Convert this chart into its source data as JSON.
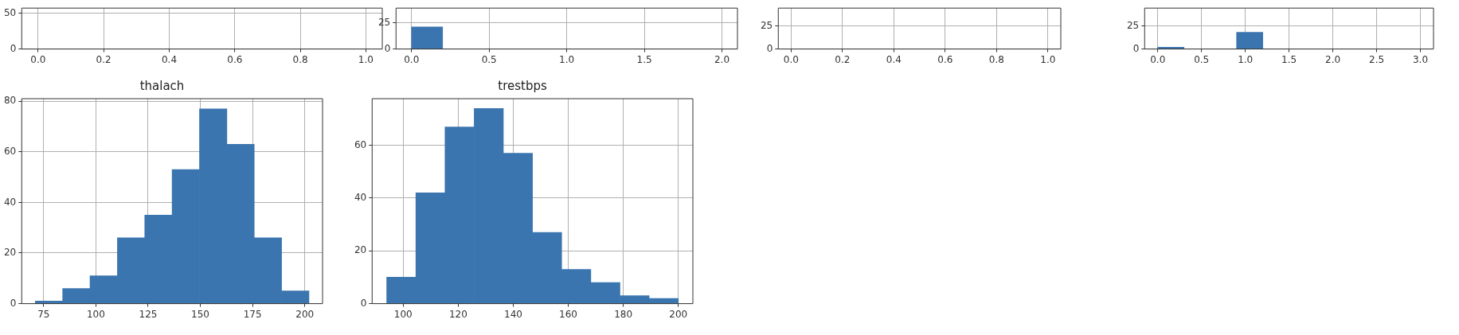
{
  "chart_data": [
    {
      "type": "histogram",
      "bins": [
        0,
        0.1,
        0.2,
        0.3,
        0.4,
        0.5,
        0.6,
        0.7,
        0.8,
        0.9,
        1.0
      ],
      "values": [
        null,
        0,
        0,
        0,
        0,
        0,
        0,
        0,
        0,
        null
      ],
      "color": "#3b75af",
      "xlim": [
        -0.05,
        1.05
      ],
      "xticks": [
        {
          "value": 0,
          "label": "0.0"
        },
        0.2,
        0.4,
        0.6,
        0.8,
        {
          "value": 1,
          "label": "1.0"
        }
      ],
      "ylim": [
        0,
        57
      ],
      "yticks": [
        0,
        50
      ],
      "grid": true
    },
    {
      "type": "histogram",
      "bins": [
        0,
        0.2,
        0.4,
        0.6,
        0.8,
        1.0,
        1.2,
        1.4,
        1.6,
        1.8,
        2.0
      ],
      "values": [
        21,
        0,
        0,
        0,
        0,
        null,
        0,
        0,
        0,
        null
      ],
      "color": "#3b75af",
      "xlim": [
        -0.1,
        2.1
      ],
      "xticks": [
        {
          "value": 0,
          "label": "0.0"
        },
        0.5,
        {
          "value": 1,
          "label": "1.0"
        },
        1.5,
        {
          "value": 2,
          "label": "2.0"
        }
      ],
      "ylim": [
        0,
        39
      ],
      "yticks": [
        0,
        25
      ],
      "grid": true
    },
    {
      "type": "histogram",
      "bins": [
        0,
        0.1,
        0.2,
        0.3,
        0.4,
        0.5,
        0.6,
        0.7,
        0.8,
        0.9,
        1.0
      ],
      "values": [
        null,
        0,
        0,
        0,
        0,
        0,
        0,
        0,
        0,
        null
      ],
      "color": "#3b75af",
      "xlim": [
        -0.05,
        1.05
      ],
      "xticks": [
        {
          "value": 0,
          "label": "0.0"
        },
        0.2,
        0.4,
        0.6,
        0.8,
        {
          "value": 1,
          "label": "1.0"
        }
      ],
      "ylim": [
        0,
        44
      ],
      "yticks": [
        0,
        25
      ],
      "grid": true
    },
    {
      "type": "histogram",
      "bins": [
        0,
        0.3,
        0.6,
        0.9,
        1.2,
        1.5,
        1.8,
        2.1,
        2.4,
        2.7,
        3.0
      ],
      "values": [
        2,
        0,
        0,
        18,
        0,
        0,
        null,
        0,
        0,
        null
      ],
      "color": "#3b75af",
      "xlim": [
        -0.15,
        3.15
      ],
      "xticks": [
        {
          "value": 0,
          "label": "0.0"
        },
        0.5,
        {
          "value": 1,
          "label": "1.0"
        },
        1.5,
        {
          "value": 2,
          "label": "2.0"
        },
        2.5,
        {
          "value": 3,
          "label": "3.0"
        }
      ],
      "ylim": [
        0,
        44
      ],
      "yticks": [
        0,
        25
      ],
      "grid": true
    },
    {
      "type": "histogram",
      "title": "thalach",
      "bins": [
        71,
        84.1,
        97.2,
        110.3,
        123.4,
        136.5,
        149.6,
        162.7,
        175.8,
        188.9,
        202
      ],
      "values": [
        1,
        6,
        11,
        26,
        35,
        53,
        77,
        63,
        26,
        5
      ],
      "color": "#3b75af",
      "xlim": [
        64.5,
        208.5
      ],
      "xticks": [
        75,
        100,
        125,
        150,
        175,
        200
      ],
      "ylim": [
        0,
        81
      ],
      "yticks": [
        0,
        20,
        40,
        60,
        80
      ],
      "grid": true
    },
    {
      "type": "histogram",
      "title": "trestbps",
      "bins": [
        94,
        104.6,
        115.2,
        125.8,
        136.4,
        147,
        157.6,
        168.2,
        178.8,
        189.4,
        200
      ],
      "values": [
        10,
        42,
        67,
        74,
        57,
        27,
        13,
        8,
        3,
        2
      ],
      "color": "#3b75af",
      "xlim": [
        88.7,
        205.3
      ],
      "xticks": [
        100,
        120,
        140,
        160,
        180,
        200
      ],
      "ylim": [
        0,
        77.7
      ],
      "yticks": [
        0,
        20,
        40,
        60
      ],
      "grid": true
    }
  ]
}
